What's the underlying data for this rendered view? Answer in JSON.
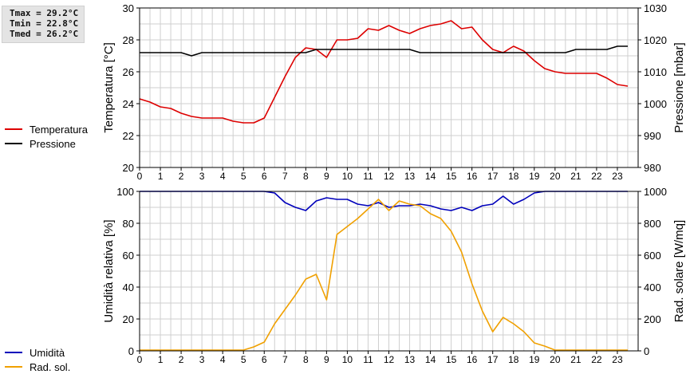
{
  "stats": {
    "tmax": "Tmax = 29.2°C",
    "tmin": "Tmin = 22.8°C",
    "tmed": "Tmed = 26.2°C"
  },
  "colors": {
    "temperatura": "#dd0000",
    "pressione": "#000000",
    "umidita": "#0000bb",
    "radsol": "#f0a000"
  },
  "chart_data": [
    {
      "type": "line",
      "ylabel": "Temperatura [°C]",
      "ylabel_right": "Pressione [mbar]",
      "ylim": [
        20,
        30
      ],
      "ylim_right": [
        980,
        1030
      ],
      "xlim": [
        0,
        24
      ],
      "x_ticks": [
        "0",
        "1",
        "2",
        "3",
        "4",
        "5",
        "6",
        "7",
        "8",
        "9",
        "10",
        "11",
        "12",
        "13",
        "14",
        "15",
        "16",
        "17",
        "18",
        "19",
        "20",
        "21",
        "22",
        "23"
      ],
      "y_ticks": [
        "20",
        "22",
        "24",
        "26",
        "28",
        "30"
      ],
      "y_ticks_right": [
        "980",
        "990",
        "1000",
        "1010",
        "1020",
        "1030"
      ],
      "grid": true,
      "legend": [
        "Temperatura",
        "Pressione"
      ],
      "series": [
        {
          "name": "Temperatura",
          "axis": "left",
          "x": [
            0,
            0.5,
            1,
            1.5,
            2,
            2.5,
            3,
            3.5,
            4,
            4.5,
            5,
            5.5,
            6,
            6.5,
            7,
            7.5,
            8,
            8.5,
            9,
            9.5,
            10,
            10.5,
            11,
            11.5,
            12,
            12.5,
            13,
            13.5,
            14,
            14.5,
            15,
            15.5,
            16,
            16.5,
            17,
            17.5,
            18,
            18.5,
            19,
            19.5,
            20,
            20.5,
            21,
            21.5,
            22,
            22.5,
            23,
            23.5
          ],
          "values": [
            24.3,
            24.1,
            23.8,
            23.7,
            23.4,
            23.2,
            23.1,
            23.1,
            23.1,
            22.9,
            22.8,
            22.8,
            23.1,
            24.4,
            25.7,
            26.9,
            27.5,
            27.4,
            26.9,
            28.0,
            28.0,
            28.1,
            28.7,
            28.6,
            28.9,
            28.6,
            28.4,
            28.7,
            28.9,
            29.0,
            29.2,
            28.7,
            28.8,
            28.0,
            27.4,
            27.2,
            27.6,
            27.3,
            26.7,
            26.2,
            26.0,
            25.9,
            25.9,
            25.9,
            25.9,
            25.6,
            25.2,
            25.1
          ]
        },
        {
          "name": "Pressione",
          "axis": "right",
          "x": [
            0,
            0.5,
            1,
            1.5,
            2,
            2.5,
            3,
            3.5,
            4,
            4.5,
            5,
            5.5,
            6,
            6.5,
            7,
            7.5,
            8,
            8.5,
            9,
            9.5,
            10,
            10.5,
            11,
            11.5,
            12,
            12.5,
            13,
            13.5,
            14,
            14.5,
            15,
            15.5,
            16,
            16.5,
            17,
            17.5,
            18,
            18.5,
            19,
            19.5,
            20,
            20.5,
            21,
            21.5,
            22,
            22.5,
            23,
            23.5
          ],
          "values": [
            1016,
            1016,
            1016,
            1016,
            1016,
            1015,
            1016,
            1016,
            1016,
            1016,
            1016,
            1016,
            1016,
            1016,
            1016,
            1016,
            1016,
            1017,
            1017,
            1017,
            1017,
            1017,
            1017,
            1017,
            1017,
            1017,
            1017,
            1016,
            1016,
            1016,
            1016,
            1016,
            1016,
            1016,
            1016,
            1016,
            1016,
            1016,
            1016,
            1016,
            1016,
            1016,
            1017,
            1017,
            1017,
            1017,
            1018,
            1018
          ]
        }
      ]
    },
    {
      "type": "line",
      "ylabel": "Umidità relativa [%]",
      "ylabel_right": "Rad. solare [W/mq]",
      "ylim": [
        0,
        100
      ],
      "ylim_right": [
        0,
        1000
      ],
      "xlim": [
        0,
        24
      ],
      "x_ticks": [
        "0",
        "1",
        "2",
        "3",
        "4",
        "5",
        "6",
        "7",
        "8",
        "9",
        "10",
        "11",
        "12",
        "13",
        "14",
        "15",
        "16",
        "17",
        "18",
        "19",
        "20",
        "21",
        "22",
        "23"
      ],
      "y_ticks": [
        "0",
        "20",
        "40",
        "60",
        "80",
        "100"
      ],
      "y_ticks_right": [
        "0",
        "200",
        "400",
        "600",
        "800",
        "1000"
      ],
      "grid": true,
      "legend": [
        "Umidità",
        "Rad. sol."
      ],
      "series": [
        {
          "name": "Umidità",
          "axis": "left",
          "x": [
            0,
            0.5,
            1,
            1.5,
            2,
            2.5,
            3,
            3.5,
            4,
            4.5,
            5,
            5.5,
            6,
            6.5,
            7,
            7.5,
            8,
            8.5,
            9,
            9.5,
            10,
            10.5,
            11,
            11.5,
            12,
            12.5,
            13,
            13.5,
            14,
            14.5,
            15,
            15.5,
            16,
            16.5,
            17,
            17.5,
            18,
            18.5,
            19,
            19.5,
            20,
            20.5,
            21,
            21.5,
            22,
            22.5,
            23,
            23.5
          ],
          "values": [
            100,
            100,
            100,
            100,
            100,
            100,
            100,
            100,
            100,
            100,
            100,
            100,
            100,
            99,
            93,
            90,
            88,
            94,
            96,
            95,
            95,
            92,
            91,
            93,
            90,
            91,
            91,
            92,
            91,
            89,
            88,
            90,
            88,
            91,
            92,
            97,
            92,
            95,
            99,
            100,
            100,
            100,
            100,
            100,
            100,
            100,
            100,
            100
          ]
        },
        {
          "name": "Rad. sol.",
          "axis": "right",
          "x": [
            0,
            0.5,
            1,
            1.5,
            2,
            2.5,
            3,
            3.5,
            4,
            4.5,
            5,
            5.5,
            6,
            6.5,
            7,
            7.5,
            8,
            8.5,
            9,
            9.5,
            10,
            10.5,
            11,
            11.5,
            12,
            12.5,
            13,
            13.5,
            14,
            14.5,
            15,
            15.5,
            16,
            16.5,
            17,
            17.5,
            18,
            18.5,
            19,
            19.5,
            20,
            20.5,
            21,
            21.5,
            22,
            22.5,
            23,
            23.5
          ],
          "values": [
            5,
            5,
            5,
            5,
            5,
            5,
            5,
            5,
            5,
            5,
            5,
            25,
            55,
            170,
            260,
            350,
            450,
            480,
            320,
            730,
            780,
            830,
            890,
            950,
            880,
            940,
            920,
            910,
            860,
            830,
            750,
            620,
            420,
            250,
            120,
            210,
            170,
            120,
            50,
            30,
            5,
            5,
            5,
            5,
            5,
            5,
            5,
            5
          ]
        }
      ]
    }
  ]
}
